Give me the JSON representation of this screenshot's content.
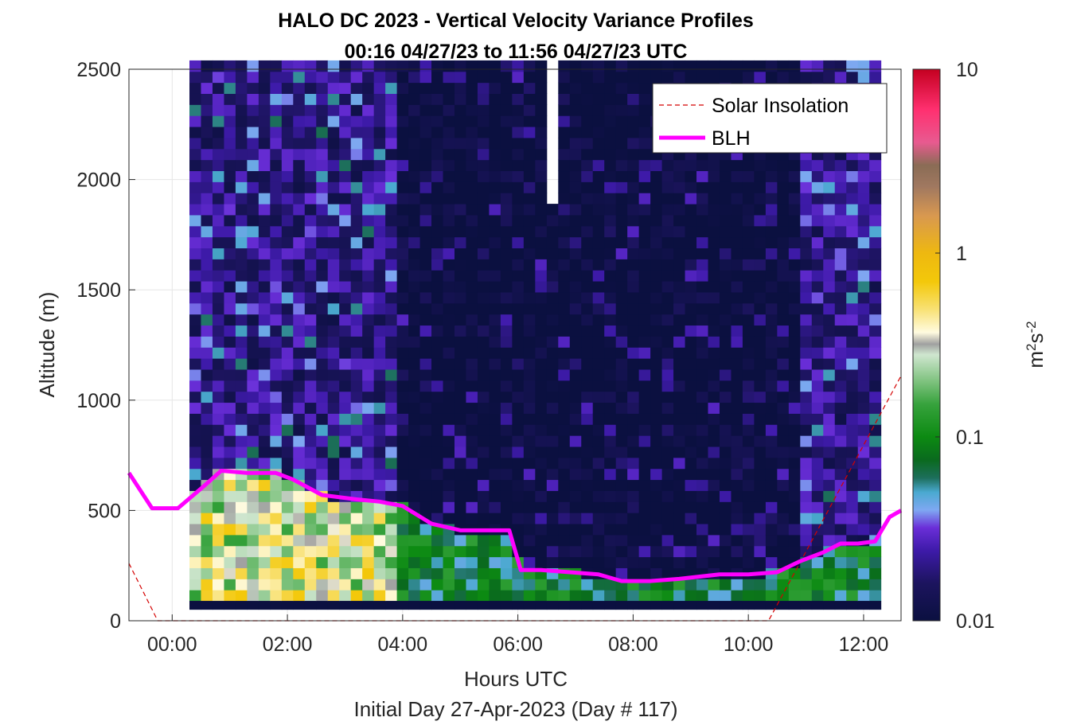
{
  "chart_data": {
    "type": "heatmap",
    "title_line1": "HALO DC 2023 - Vertical Velocity Variance Profiles",
    "title_line2": "00:16 04/27/23 to 11:56 04/27/23  UTC",
    "xlabel": "Hours UTC",
    "xlabel2": "Initial Day 27-Apr-2023 (Day # 117)",
    "ylabel": "Altitude (m)",
    "xlim_hours": [
      -0.75,
      12.65
    ],
    "ylim": [
      0,
      2500
    ],
    "x_ticks": [
      {
        "value": 0,
        "label": "00:00"
      },
      {
        "value": 2,
        "label": "02:00"
      },
      {
        "value": 4,
        "label": "04:00"
      },
      {
        "value": 6,
        "label": "06:00"
      },
      {
        "value": 8,
        "label": "08:00"
      },
      {
        "value": 10,
        "label": "10:00"
      },
      {
        "value": 12,
        "label": "12:00"
      }
    ],
    "y_ticks": [
      {
        "value": 0,
        "label": "0"
      },
      {
        "value": 500,
        "label": "500"
      },
      {
        "value": 1000,
        "label": "1000"
      },
      {
        "value": 1500,
        "label": "1500"
      },
      {
        "value": 2000,
        "label": "2000"
      },
      {
        "value": 2500,
        "label": "2500"
      }
    ],
    "colorbar": {
      "scale": "log",
      "range": [
        0.01,
        10
      ],
      "label": "m²s⁻²",
      "ticks": [
        {
          "value": 0.01,
          "label": "0.01"
        },
        {
          "value": 0.1,
          "label": "0.1"
        },
        {
          "value": 1,
          "label": "1"
        },
        {
          "value": 10,
          "label": "10"
        }
      ],
      "stops": [
        {
          "value": 0.01,
          "color": "#0b1040"
        },
        {
          "value": 0.016,
          "color": "#1c145e"
        },
        {
          "value": 0.024,
          "color": "#3d1aa8"
        },
        {
          "value": 0.032,
          "color": "#6a2ed8"
        },
        {
          "value": 0.04,
          "color": "#7fa8f2"
        },
        {
          "value": 0.05,
          "color": "#4aa9d0"
        },
        {
          "value": 0.06,
          "color": "#1c6e5a"
        },
        {
          "value": 0.075,
          "color": "#0a6a1e"
        },
        {
          "value": 0.1,
          "color": "#0c8a12"
        },
        {
          "value": 0.15,
          "color": "#36a23c"
        },
        {
          "value": 0.2,
          "color": "#7ec27e"
        },
        {
          "value": 0.28,
          "color": "#cfe6cf"
        },
        {
          "value": 0.32,
          "color": "#a0a0a0"
        },
        {
          "value": 0.37,
          "color": "#fffbe0"
        },
        {
          "value": 0.5,
          "color": "#f8e070"
        },
        {
          "value": 0.7,
          "color": "#f3c80a"
        },
        {
          "value": 1.0,
          "color": "#eeb810"
        },
        {
          "value": 1.6,
          "color": "#d89850"
        },
        {
          "value": 2.3,
          "color": "#a07860"
        },
        {
          "value": 3.0,
          "color": "#8a6c55"
        },
        {
          "value": 4.0,
          "color": "#e85a90"
        },
        {
          "value": 6.0,
          "color": "#ff3070"
        },
        {
          "value": 10.0,
          "color": "#c40020"
        }
      ]
    },
    "grid": true,
    "legend": {
      "placement": "top-right",
      "entries": [
        {
          "label": "Solar Insolation",
          "color": "#d40000",
          "style": "dashed"
        },
        {
          "label": "BLH",
          "color": "#ff00ff",
          "style": "solid"
        }
      ]
    },
    "heatmap": {
      "x_start_hours": 0.3,
      "bin_hours": 0.2,
      "altitude_bottom_m": 90,
      "bin_height_m": 50,
      "columns": 60,
      "rows": 49,
      "profiles_approx": "surface layer below BLH ~0.2-0.8 m2s-2 before 04:00, ~0.05-0.15 after; aloft mostly 0.01-0.1",
      "missing_data_hours": [
        [
          6.5,
          6.8
        ]
      ]
    },
    "blh_series": {
      "name": "BLH",
      "color": "#ff00ff",
      "x": [
        -0.75,
        -0.35,
        0.1,
        0.55,
        0.85,
        1.3,
        1.8,
        2.1,
        2.6,
        3.2,
        3.6,
        4.0,
        4.5,
        5.0,
        5.5,
        5.85,
        6.05,
        6.4,
        6.9,
        7.4,
        7.8,
        8.3,
        8.8,
        9.5,
        10.0,
        10.5,
        10.9,
        11.3,
        11.6,
        11.9,
        12.2,
        12.45,
        12.65
      ],
      "y": [
        670,
        510,
        510,
        610,
        680,
        670,
        670,
        640,
        570,
        550,
        540,
        520,
        440,
        410,
        410,
        410,
        230,
        230,
        220,
        210,
        180,
        180,
        190,
        210,
        210,
        220,
        270,
        310,
        350,
        350,
        360,
        470,
        500
      ]
    },
    "solar_insolation_series": {
      "name": "Solar Insolation",
      "color": "#d40000",
      "x": [
        -0.75,
        -0.25,
        10.35,
        12.65
      ],
      "y": [
        260,
        0,
        0,
        1110
      ]
    }
  }
}
